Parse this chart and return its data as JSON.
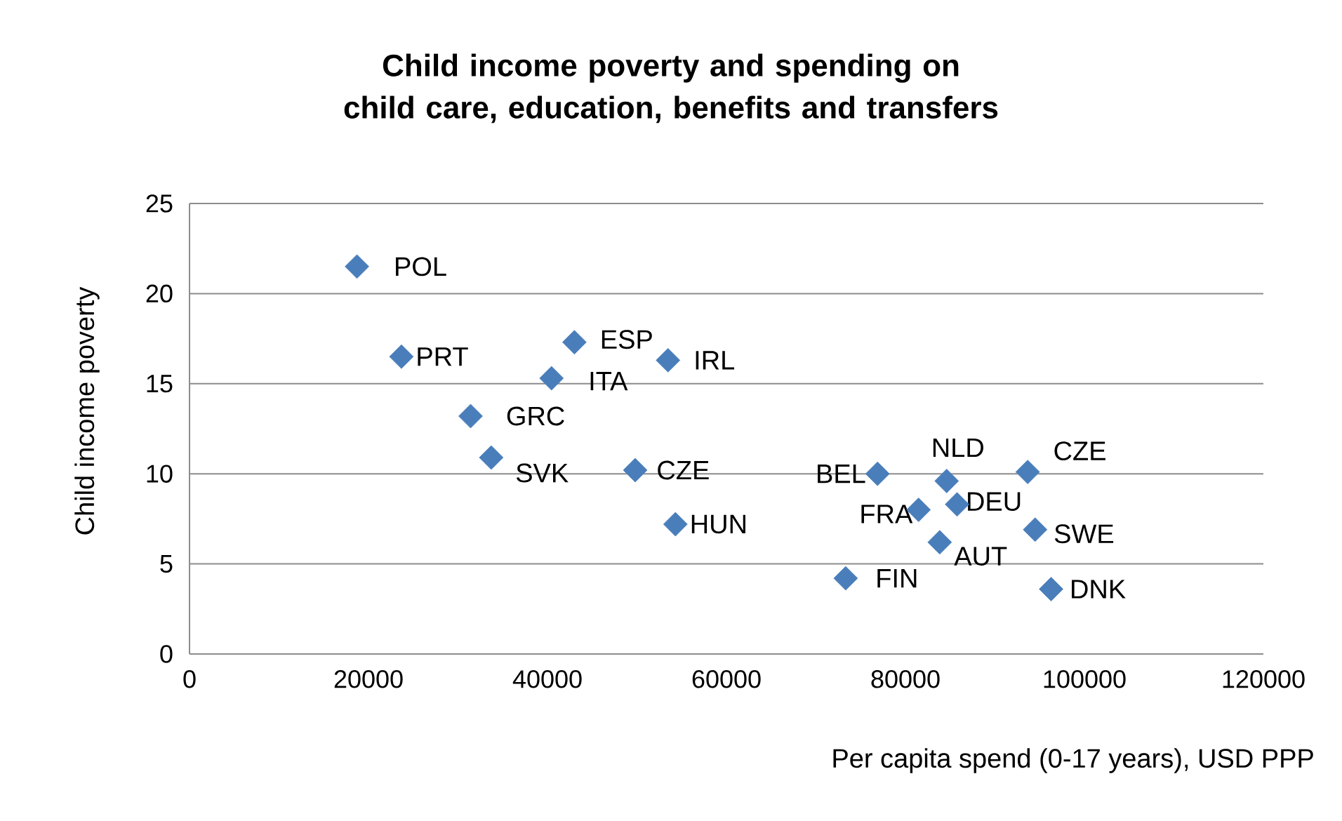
{
  "chart_data": {
    "type": "scatter",
    "title": "Child income poverty and spending on child care, education, benefits and transfers",
    "xlabel": "Per capita spend (0-17 years), USD PPP",
    "ylabel": "Child income poverty",
    "series": [
      {
        "color": "#4a7ebb",
        "x": [
          18710,
          23680,
          43010,
          40450,
          53470,
          31410,
          33710,
          49800,
          54300,
          76880,
          84610,
          93660,
          81470,
          85770,
          94490,
          96280,
          83830,
          73320
        ],
        "values": [
          21.5,
          16.5,
          17.3,
          15.3,
          16.3,
          13.2,
          10.9,
          10.2,
          7.2,
          10.0,
          9.6,
          10.1,
          8.0,
          8.3,
          6.9,
          3.6,
          6.2,
          4.2
        ]
      }
    ],
    "annotations": [
      {
        "text": "POL",
        "x": 18710,
        "y": 21.5
      },
      {
        "text": "PRT",
        "x": 23680,
        "y": 16.5
      },
      {
        "text": "ESP",
        "x": 43010,
        "y": 17.3
      },
      {
        "text": "ITA",
        "x": 40450,
        "y": 15.3
      },
      {
        "text": "IRL",
        "x": 53470,
        "y": 16.3
      },
      {
        "text": "GRC",
        "x": 31410,
        "y": 13.2
      },
      {
        "text": "SVK",
        "x": 33710,
        "y": 10.9
      },
      {
        "text": "CZE",
        "x": 49800,
        "y": 10.2
      },
      {
        "text": "HUN",
        "x": 54300,
        "y": 7.2
      },
      {
        "text": "BEL",
        "x": 76880,
        "y": 10.0
      },
      {
        "text": "NLD",
        "x": 84610,
        "y": 9.6
      },
      {
        "text": "CZE",
        "x": 93660,
        "y": 10.1
      },
      {
        "text": "FRA",
        "x": 81470,
        "y": 8.0
      },
      {
        "text": "DEU",
        "x": 85770,
        "y": 8.3
      },
      {
        "text": "SWE",
        "x": 94490,
        "y": 6.9
      },
      {
        "text": "DNK",
        "x": 96280,
        "y": 3.6
      },
      {
        "text": "AUT",
        "x": 83830,
        "y": 6.2
      },
      {
        "text": "FIN",
        "x": 73320,
        "y": 4.2
      }
    ],
    "xlim": [
      0,
      120000
    ],
    "xticks": [
      0,
      20000,
      40000,
      60000,
      80000,
      100000,
      120000
    ],
    "ylim": [
      0,
      25
    ],
    "yticks": [
      0,
      5,
      10,
      15,
      20,
      25
    ],
    "grid": "y",
    "marker": "diamond"
  }
}
